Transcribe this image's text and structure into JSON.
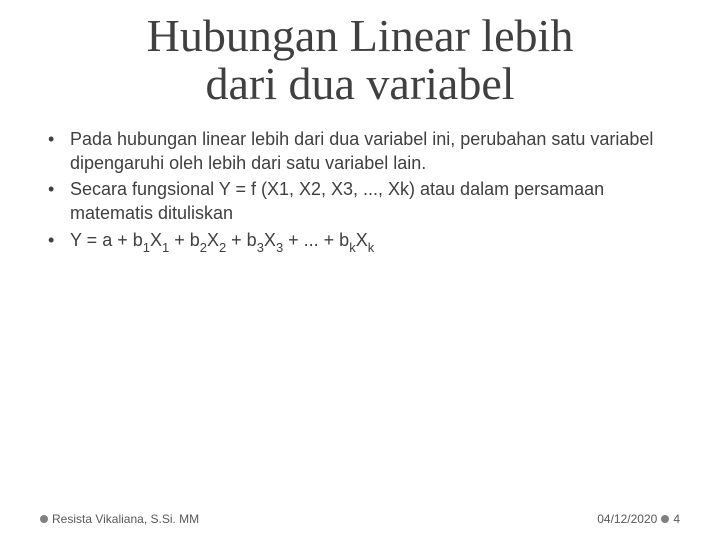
{
  "slide": {
    "title_line1": "Hubungan Linear lebih",
    "title_line2": "dari dua variabel",
    "bullets": [
      {
        "type": "plain",
        "text": "Pada hubungan linear lebih dari dua variabel ini, perubahan satu variabel dipengaruhi oleh lebih dari satu variabel lain."
      },
      {
        "type": "plain",
        "text": "Secara fungsional Y = f (X1, X2, X3, ..., Xk) atau dalam persamaan matematis dituliskan"
      },
      {
        "type": "equation"
      }
    ],
    "equation": {
      "prefix": "Y = a + b",
      "terms": [
        {
          "coef_sub": "1",
          "var": "X",
          "var_sub": "1"
        },
        {
          "coef_sub": "2",
          "var": "X",
          "var_sub": "2"
        },
        {
          "coef_sub": "3",
          "var": "X",
          "var_sub": "3"
        }
      ],
      "ellipsis": " + ... + b",
      "last_coef_sub": "k",
      "last_var": "X",
      "last_var_sub": "k"
    }
  },
  "footer": {
    "author": "Resista Vikaliana, S.Si. MM",
    "date": "04/12/2020",
    "page": "4"
  },
  "style": {
    "background_color": "#ffffff",
    "title_color": "#404040",
    "title_fontsize_pt": 34,
    "title_font_family": "Georgia, serif",
    "body_color": "#404040",
    "body_fontsize_pt": 14,
    "body_font_family": "Arial, sans-serif",
    "footer_color": "#595959",
    "footer_fontsize_pt": 9,
    "footer_dot_color": "#808080",
    "bullet_marker": "•"
  }
}
